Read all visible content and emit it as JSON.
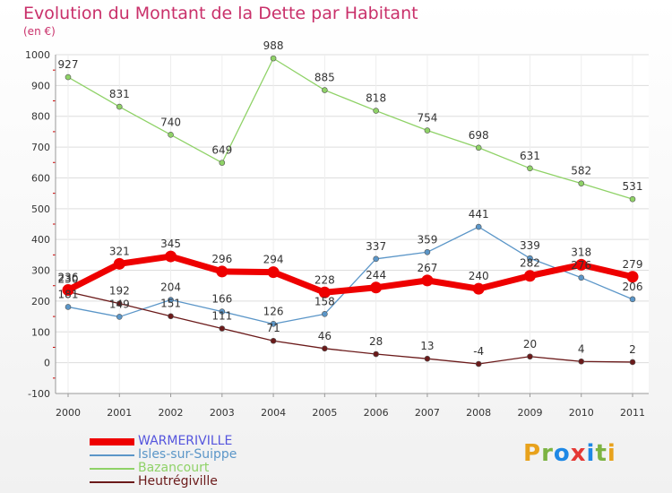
{
  "title": "Evolution du Montant de la Dette par Habitant",
  "subtitle": "(en €)",
  "logo": {
    "text": "Proxiti",
    "colors": [
      "#e8a21c",
      "#7cb342",
      "#1e88e5",
      "#e53935",
      "#1e88e5",
      "#7cb342",
      "#e8a21c"
    ]
  },
  "chart_data": {
    "type": "line",
    "categories": [
      "2000",
      "2001",
      "2002",
      "2003",
      "2004",
      "2005",
      "2006",
      "2007",
      "2008",
      "2009",
      "2010",
      "2011"
    ],
    "ylim": [
      -100,
      1000
    ],
    "yticks": [
      -100,
      0,
      100,
      200,
      300,
      400,
      500,
      600,
      700,
      800,
      900,
      1000
    ],
    "grid": "horizontal",
    "legend_position": "bottom-left",
    "series": [
      {
        "name": "WARMERIVILLE",
        "color": "#ee0000",
        "legend_color": "#5555dd",
        "values": [
          236,
          321,
          345,
          296,
          294,
          228,
          244,
          267,
          240,
          282,
          318,
          279
        ]
      },
      {
        "name": "Isles-sur-Suippe",
        "color": "#5b96c8",
        "values": [
          181,
          149,
          204,
          166,
          126,
          158,
          337,
          359,
          441,
          339,
          276,
          206
        ]
      },
      {
        "name": "Bazancourt",
        "color": "#8fd267",
        "values": [
          927,
          831,
          740,
          649,
          988,
          885,
          818,
          754,
          698,
          631,
          582,
          531
        ]
      },
      {
        "name": "Heutrégiville",
        "color": "#6b1a1a",
        "values": [
          230,
          192,
          151,
          111,
          71,
          46,
          28,
          13,
          -4,
          20,
          4,
          2
        ]
      }
    ],
    "data_labels": [
      {
        "series": "WARMERIVILLE",
        "labels": [
          "236",
          "321",
          "345",
          "296",
          "294",
          "228",
          "244",
          "267",
          "240",
          "282",
          "318",
          "279"
        ]
      },
      {
        "series": "Isles-sur-Suippe",
        "labels": [
          "181",
          "149",
          "204",
          "166",
          "126",
          "158",
          "337",
          "359",
          "441",
          "339",
          "276",
          "206"
        ]
      },
      {
        "series": "Bazancourt",
        "labels": [
          "927",
          "831",
          "740",
          "649",
          "988",
          "885",
          "818",
          "754",
          "698",
          "631",
          "582",
          "531"
        ]
      },
      {
        "series": "Heutrégiville",
        "labels": [
          "230",
          "192",
          "151",
          "111",
          "71",
          "46",
          "28",
          "13",
          "-4",
          "20",
          "4",
          "2"
        ]
      }
    ]
  }
}
